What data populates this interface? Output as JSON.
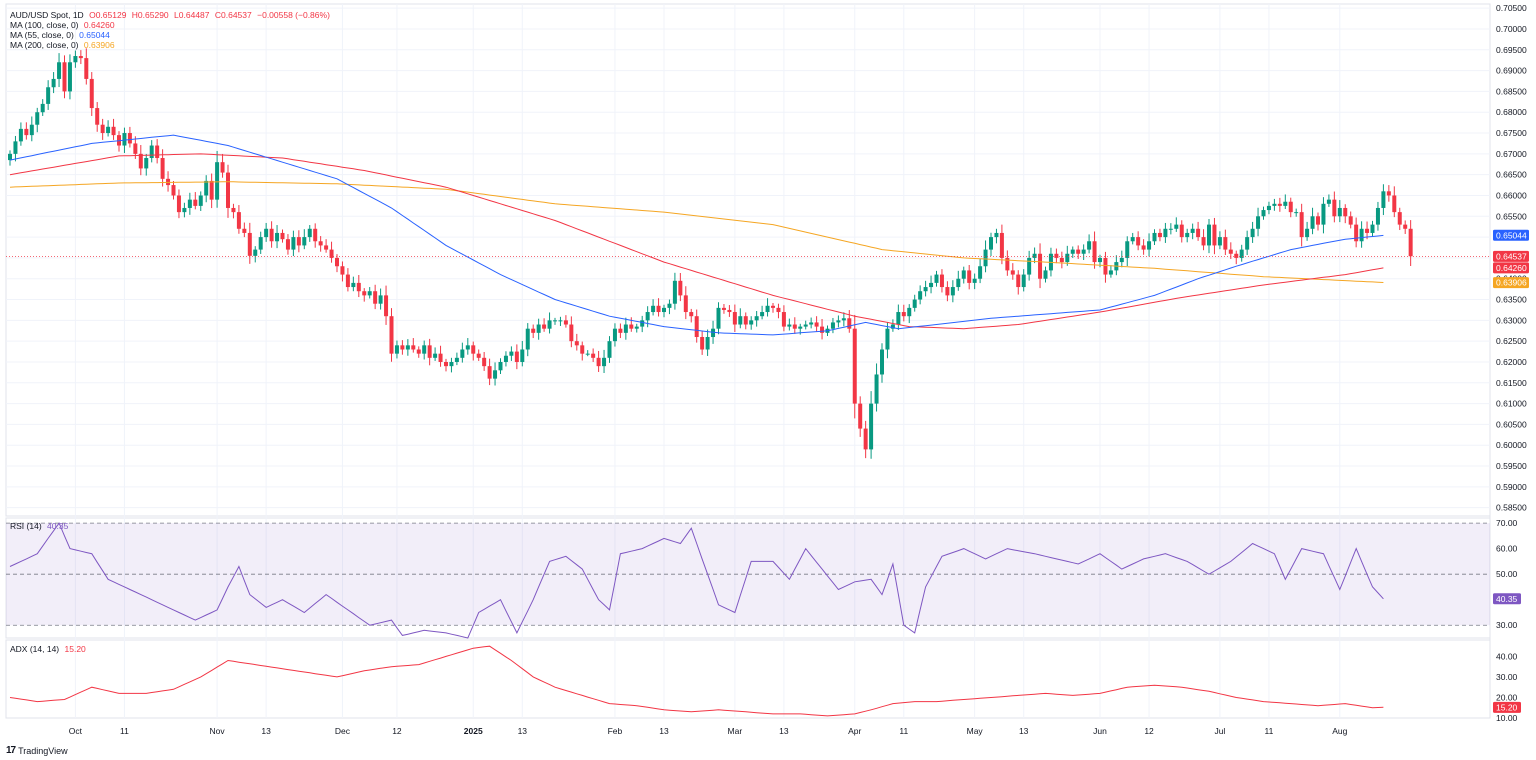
{
  "header": {
    "symbol": "AUD/USD Spot, 1D",
    "open": "O0.65129",
    "high": "H0.65290",
    "low": "L0.64487",
    "close": "C0.64537",
    "change": "−0.00558 (−0.86%)"
  },
  "indicators": {
    "ma100": {
      "label": "MA (100, close, 0)",
      "value": "0.64260",
      "color": "#f23645"
    },
    "ma55": {
      "label": "MA (55, close, 0)",
      "value": "0.65044",
      "color": "#2962ff"
    },
    "ma200": {
      "label": "MA (200, close, 0)",
      "value": "0.63906",
      "color": "#f5a623"
    },
    "rsi": {
      "label": "RSI (14)",
      "value": "40.35",
      "color": "#7e57c2"
    },
    "adx": {
      "label": "ADX (14, 14)",
      "value": "15.20",
      "color": "#f23645"
    }
  },
  "branding": {
    "logo_text": "TradingView",
    "logo_mark": "17"
  },
  "chart_data": {
    "type": "candlestick",
    "instrument": "AUD/USD Spot",
    "timeframe": "1D",
    "x_tick_labels": [
      "Oct",
      "11",
      "Nov",
      "13",
      "Dec",
      "12",
      "2025",
      "13",
      "Feb",
      "13",
      "Mar",
      "13",
      "Apr",
      "11",
      "May",
      "13",
      "Jun",
      "12",
      "Jul",
      "11",
      "Aug"
    ],
    "x_tick_bar_index": [
      12,
      21,
      38,
      47,
      61,
      71,
      85,
      94,
      111,
      120,
      133,
      142,
      155,
      164,
      177,
      186,
      200,
      209,
      222,
      231,
      244
    ],
    "price_axis": {
      "ylim": [
        0.583,
        0.706
      ],
      "ticks": [
        "0.70500",
        "0.70000",
        "0.69500",
        "0.69000",
        "0.68500",
        "0.68000",
        "0.67500",
        "0.67000",
        "0.66500",
        "0.66000",
        "0.65500",
        "0.65000",
        "0.64500",
        "0.64000",
        "0.63500",
        "0.63000",
        "0.62500",
        "0.62000",
        "0.61500",
        "0.61000",
        "0.60500",
        "0.60000",
        "0.59500",
        "0.59000",
        "0.58500"
      ],
      "badges": [
        {
          "label": "0.65044",
          "value": 0.65044,
          "color": "#2962ff"
        },
        {
          "label": "0.64537",
          "value": 0.64537,
          "color": "#f23645"
        },
        {
          "label": "0.64260",
          "value": 0.6426,
          "color": "#f23645"
        },
        {
          "label": "0.63906",
          "value": 0.63906,
          "color": "#f5a623"
        }
      ],
      "last_price_line": 0.64537
    },
    "candles_close": [
      0.67,
      0.673,
      0.676,
      0.6745,
      0.677,
      0.68,
      0.682,
      0.686,
      0.688,
      0.692,
      0.685,
      0.692,
      0.6935,
      0.693,
      0.688,
      0.681,
      0.677,
      0.675,
      0.6765,
      0.6745,
      0.672,
      0.675,
      0.6725,
      0.67,
      0.6665,
      0.669,
      0.672,
      0.669,
      0.664,
      0.6625,
      0.66,
      0.656,
      0.657,
      0.659,
      0.6575,
      0.66,
      0.6635,
      0.659,
      0.668,
      0.6655,
      0.657,
      0.656,
      0.652,
      0.651,
      0.6455,
      0.647,
      0.65,
      0.652,
      0.649,
      0.651,
      0.6495,
      0.647,
      0.65,
      0.648,
      0.65,
      0.652,
      0.649,
      0.648,
      0.647,
      0.645,
      0.643,
      0.641,
      0.638,
      0.639,
      0.637,
      0.636,
      0.637,
      0.634,
      0.636,
      0.631,
      0.622,
      0.624,
      0.623,
      0.624,
      0.623,
      0.622,
      0.624,
      0.621,
      0.622,
      0.62,
      0.619,
      0.62,
      0.621,
      0.623,
      0.624,
      0.622,
      0.621,
      0.619,
      0.616,
      0.618,
      0.62,
      0.6215,
      0.6225,
      0.62,
      0.623,
      0.628,
      0.627,
      0.629,
      0.628,
      0.63,
      0.63,
      0.63,
      0.629,
      0.625,
      0.624,
      0.622,
      0.622,
      0.621,
      0.619,
      0.621,
      0.625,
      0.628,
      0.627,
      0.629,
      0.628,
      0.6285,
      0.63,
      0.632,
      0.6335,
      0.632,
      0.633,
      0.634,
      0.6395,
      0.636,
      0.632,
      0.631,
      0.626,
      0.623,
      0.626,
      0.628,
      0.633,
      0.6325,
      0.632,
      0.629,
      0.631,
      0.629,
      0.63,
      0.631,
      0.632,
      0.6335,
      0.633,
      0.632,
      0.6285,
      0.629,
      0.628,
      0.6285,
      0.629,
      0.6295,
      0.6285,
      0.627,
      0.628,
      0.6295,
      0.63,
      0.6305,
      0.628,
      0.61,
      0.604,
      0.599,
      0.61,
      0.617,
      0.623,
      0.628,
      0.629,
      0.632,
      0.631,
      0.633,
      0.635,
      0.637,
      0.638,
      0.639,
      0.641,
      0.638,
      0.636,
      0.638,
      0.64,
      0.642,
      0.639,
      0.64,
      0.643,
      0.647,
      0.65,
      0.651,
      0.645,
      0.642,
      0.641,
      0.638,
      0.641,
      0.645,
      0.646,
      0.64,
      0.642,
      0.646,
      0.645,
      0.644,
      0.646,
      0.647,
      0.646,
      0.647,
      0.649,
      0.644,
      0.645,
      0.641,
      0.642,
      0.644,
      0.645,
      0.649,
      0.65,
      0.648,
      0.647,
      0.649,
      0.651,
      0.65,
      0.652,
      0.652,
      0.653,
      0.65,
      0.651,
      0.652,
      0.65,
      0.648,
      0.653,
      0.648,
      0.65,
      0.647,
      0.646,
      0.645,
      0.647,
      0.65,
      0.652,
      0.655,
      0.6565,
      0.6575,
      0.658,
      0.6575,
      0.6585,
      0.656,
      0.656,
      0.65,
      0.652,
      0.655,
      0.653,
      0.658,
      0.659,
      0.655,
      0.657,
      0.655,
      0.653,
      0.649,
      0.652,
      0.651,
      0.653,
      0.657,
      0.661,
      0.66,
      0.656,
      0.653,
      0.652,
      0.6454
    ],
    "series": [
      {
        "name": "MA (100, close, 0)",
        "color": "#f23645",
        "last": 0.6426
      },
      {
        "name": "MA (55, close, 0)",
        "color": "#2962ff",
        "last": 0.65044
      },
      {
        "name": "MA (200, close, 0)",
        "color": "#f5a623",
        "last": 0.63906
      }
    ],
    "ma_anchors": {
      "ma55": [
        [
          0,
          0.6685
        ],
        [
          15,
          0.6725
        ],
        [
          30,
          0.6745
        ],
        [
          40,
          0.672
        ],
        [
          50,
          0.668
        ],
        [
          60,
          0.664
        ],
        [
          70,
          0.657
        ],
        [
          80,
          0.648
        ],
        [
          90,
          0.641
        ],
        [
          100,
          0.635
        ],
        [
          110,
          0.631
        ],
        [
          120,
          0.6285
        ],
        [
          130,
          0.627
        ],
        [
          140,
          0.6265
        ],
        [
          150,
          0.6275
        ],
        [
          157,
          0.6295
        ],
        [
          163,
          0.628
        ],
        [
          170,
          0.629
        ],
        [
          180,
          0.6305
        ],
        [
          190,
          0.6315
        ],
        [
          200,
          0.6325
        ],
        [
          210,
          0.636
        ],
        [
          218,
          0.64
        ],
        [
          225,
          0.643
        ],
        [
          235,
          0.647
        ],
        [
          245,
          0.6495
        ],
        [
          252,
          0.6504
        ]
      ],
      "ma100": [
        [
          0,
          0.665
        ],
        [
          20,
          0.6695
        ],
        [
          35,
          0.67
        ],
        [
          50,
          0.669
        ],
        [
          65,
          0.666
        ],
        [
          80,
          0.662
        ],
        [
          100,
          0.654
        ],
        [
          120,
          0.644
        ],
        [
          140,
          0.636
        ],
        [
          155,
          0.631
        ],
        [
          165,
          0.6285
        ],
        [
          175,
          0.628
        ],
        [
          185,
          0.629
        ],
        [
          200,
          0.632
        ],
        [
          215,
          0.6355
        ],
        [
          230,
          0.6385
        ],
        [
          245,
          0.641
        ],
        [
          252,
          0.6426
        ]
      ],
      "ma200": [
        [
          0,
          0.662
        ],
        [
          20,
          0.663
        ],
        [
          40,
          0.6633
        ],
        [
          60,
          0.6628
        ],
        [
          80,
          0.6615
        ],
        [
          100,
          0.658
        ],
        [
          120,
          0.656
        ],
        [
          140,
          0.653
        ],
        [
          160,
          0.647
        ],
        [
          175,
          0.645
        ],
        [
          190,
          0.644
        ],
        [
          210,
          0.6425
        ],
        [
          230,
          0.6405
        ],
        [
          252,
          0.6391
        ]
      ]
    },
    "rsi": {
      "label": "RSI (14)",
      "ylim": [
        25,
        72
      ],
      "ticks": [
        "70.00",
        "60.00",
        "50.00",
        "30.00"
      ],
      "bands": {
        "upper": 70,
        "middle": 50,
        "lower": 30
      },
      "last": 40.35,
      "anchors": [
        [
          0,
          53
        ],
        [
          5,
          58
        ],
        [
          9,
          70
        ],
        [
          11,
          60
        ],
        [
          15,
          58
        ],
        [
          18,
          48
        ],
        [
          22,
          44
        ],
        [
          28,
          38
        ],
        [
          34,
          32
        ],
        [
          38,
          36
        ],
        [
          40,
          45
        ],
        [
          42,
          53
        ],
        [
          44,
          42
        ],
        [
          47,
          37
        ],
        [
          50,
          40
        ],
        [
          54,
          35
        ],
        [
          58,
          42
        ],
        [
          62,
          36
        ],
        [
          66,
          30
        ],
        [
          70,
          32
        ],
        [
          72,
          26
        ],
        [
          76,
          28
        ],
        [
          80,
          27
        ],
        [
          84,
          25
        ],
        [
          86,
          35
        ],
        [
          90,
          40
        ],
        [
          93,
          27
        ],
        [
          96,
          40
        ],
        [
          99,
          55
        ],
        [
          102,
          57
        ],
        [
          105,
          52
        ],
        [
          108,
          40
        ],
        [
          110,
          36
        ],
        [
          112,
          58
        ],
        [
          116,
          60
        ],
        [
          120,
          64
        ],
        [
          123,
          62
        ],
        [
          125,
          68
        ],
        [
          127,
          56
        ],
        [
          130,
          38
        ],
        [
          133,
          35
        ],
        [
          136,
          55
        ],
        [
          140,
          55
        ],
        [
          143,
          48
        ],
        [
          146,
          60
        ],
        [
          149,
          52
        ],
        [
          152,
          44
        ],
        [
          155,
          47
        ],
        [
          158,
          48
        ],
        [
          160,
          42
        ],
        [
          162,
          54
        ],
        [
          164,
          30
        ],
        [
          166,
          27
        ],
        [
          168,
          45
        ],
        [
          171,
          57
        ],
        [
          175,
          60
        ],
        [
          179,
          56
        ],
        [
          183,
          60
        ],
        [
          188,
          58
        ],
        [
          192,
          56
        ],
        [
          196,
          54
        ],
        [
          200,
          58
        ],
        [
          204,
          52
        ],
        [
          208,
          56
        ],
        [
          212,
          58
        ],
        [
          216,
          55
        ],
        [
          220,
          50
        ],
        [
          224,
          55
        ],
        [
          228,
          62
        ],
        [
          232,
          58
        ],
        [
          234,
          48
        ],
        [
          237,
          60
        ],
        [
          241,
          58
        ],
        [
          244,
          44
        ],
        [
          247,
          60
        ],
        [
          250,
          45
        ],
        [
          252,
          40.35
        ]
      ]
    },
    "adx": {
      "label": "ADX (14, 14)",
      "ylim": [
        10,
        48
      ],
      "ticks": [
        "40.00",
        "30.00",
        "20.00",
        "10.00"
      ],
      "last": 15.2,
      "anchors": [
        [
          0,
          20
        ],
        [
          5,
          18
        ],
        [
          10,
          19
        ],
        [
          15,
          25
        ],
        [
          20,
          22
        ],
        [
          25,
          22
        ],
        [
          30,
          24
        ],
        [
          35,
          30
        ],
        [
          40,
          38
        ],
        [
          45,
          36
        ],
        [
          50,
          34
        ],
        [
          55,
          32
        ],
        [
          60,
          30
        ],
        [
          65,
          33
        ],
        [
          70,
          35
        ],
        [
          75,
          36
        ],
        [
          80,
          40
        ],
        [
          85,
          44
        ],
        [
          88,
          45
        ],
        [
          92,
          38
        ],
        [
          96,
          30
        ],
        [
          100,
          25
        ],
        [
          105,
          21
        ],
        [
          110,
          17
        ],
        [
          115,
          16
        ],
        [
          120,
          14
        ],
        [
          125,
          13
        ],
        [
          130,
          14
        ],
        [
          135,
          13
        ],
        [
          140,
          12
        ],
        [
          145,
          12
        ],
        [
          150,
          11
        ],
        [
          155,
          12
        ],
        [
          158,
          14
        ],
        [
          162,
          17
        ],
        [
          166,
          18
        ],
        [
          170,
          18
        ],
        [
          175,
          19
        ],
        [
          180,
          20
        ],
        [
          185,
          21
        ],
        [
          190,
          22
        ],
        [
          195,
          21
        ],
        [
          200,
          22
        ],
        [
          205,
          25
        ],
        [
          210,
          26
        ],
        [
          215,
          25
        ],
        [
          220,
          23
        ],
        [
          225,
          20
        ],
        [
          230,
          18
        ],
        [
          235,
          17
        ],
        [
          240,
          16
        ],
        [
          245,
          17
        ],
        [
          250,
          15
        ],
        [
          252,
          15.2
        ]
      ]
    }
  }
}
